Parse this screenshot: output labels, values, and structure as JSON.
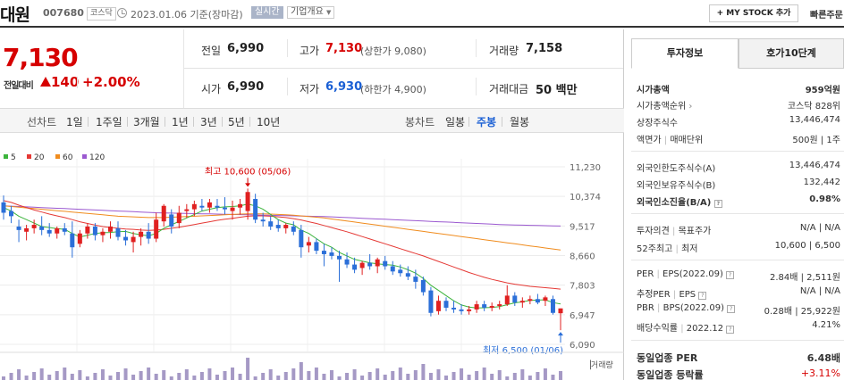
{
  "header": {
    "company": "대원",
    "code": "007680",
    "market": "코스닥",
    "date_text": "2023.01.06  기준(장마감)",
    "realtime_badge": "실시간",
    "overview_dropdown": "기업개요",
    "mystock_label": "MY STOCK 추가",
    "quick_order_label": "빠른주문"
  },
  "price": {
    "current": "7,130",
    "change_label": "전일대비",
    "change_value": "140",
    "change_pct": "+2.00%"
  },
  "summary": {
    "prev_close_label": "전일",
    "prev_close": "6,990",
    "high_label": "고가",
    "high": "7,130",
    "upper_limit": "(상한가 9,080)",
    "volume_label": "거래량",
    "volume": "7,158",
    "open_label": "시가",
    "open": "6,990",
    "low_label": "저가",
    "low": "6,930",
    "lower_limit": "(하한가 4,900)",
    "amount_label": "거래대금",
    "amount": "50 백만"
  },
  "toolbar": {
    "line_chart_label": "선차트",
    "periods": [
      "1일",
      "1주일",
      "3개월",
      "1년",
      "3년",
      "5년",
      "10년"
    ],
    "candle_chart_label": "봉차트",
    "candle_periods": [
      "일봉",
      "주봉",
      "월봉"
    ],
    "candle_active": "주봉"
  },
  "chart_data": {
    "type": "candlestick",
    "ma_legend": [
      {
        "name": "5",
        "color": "#3cb43c"
      },
      {
        "name": "20",
        "color": "#e53935"
      },
      {
        "name": "60",
        "color": "#f08c1e"
      },
      {
        "name": "120",
        "color": "#9b59d0"
      }
    ],
    "y_ticks": [
      "11,230",
      "10,374",
      "9,517",
      "8,660",
      "7,803",
      "6,947",
      "6,090"
    ],
    "ylim": [
      6090,
      11230
    ],
    "high_annotation": "최고 10,600 (05/06)",
    "low_annotation": "최저 6,500 (01/06)",
    "volume_label": "거래량",
    "candles": [
      {
        "o": 10200,
        "h": 10400,
        "l": 9700,
        "c": 9900
      },
      {
        "o": 9950,
        "h": 10100,
        "l": 9600,
        "c": 9800
      },
      {
        "o": 9500,
        "h": 9700,
        "l": 9050,
        "c": 9400
      },
      {
        "o": 9350,
        "h": 9550,
        "l": 9100,
        "c": 9450
      },
      {
        "o": 9450,
        "h": 9700,
        "l": 9300,
        "c": 9550
      },
      {
        "o": 9500,
        "h": 9800,
        "l": 9250,
        "c": 9400
      },
      {
        "o": 9400,
        "h": 9600,
        "l": 9200,
        "c": 9300
      },
      {
        "o": 9300,
        "h": 9500,
        "l": 9150,
        "c": 9450
      },
      {
        "o": 9450,
        "h": 9600,
        "l": 9250,
        "c": 9350
      },
      {
        "o": 9300,
        "h": 9650,
        "l": 8600,
        "c": 8900
      },
      {
        "o": 9000,
        "h": 9400,
        "l": 8900,
        "c": 9300
      },
      {
        "o": 9300,
        "h": 9600,
        "l": 9150,
        "c": 9500
      },
      {
        "o": 9500,
        "h": 9600,
        "l": 9100,
        "c": 9250
      },
      {
        "o": 9250,
        "h": 9450,
        "l": 9050,
        "c": 9350
      },
      {
        "o": 9350,
        "h": 9650,
        "l": 9150,
        "c": 9500
      },
      {
        "o": 9450,
        "h": 9650,
        "l": 9100,
        "c": 9200
      },
      {
        "o": 9200,
        "h": 9400,
        "l": 8950,
        "c": 9100
      },
      {
        "o": 9050,
        "h": 9350,
        "l": 8750,
        "c": 9200
      },
      {
        "o": 9200,
        "h": 9450,
        "l": 8950,
        "c": 9350
      },
      {
        "o": 9350,
        "h": 9600,
        "l": 9000,
        "c": 9150
      },
      {
        "o": 9150,
        "h": 9900,
        "l": 9050,
        "c": 9700
      },
      {
        "o": 9650,
        "h": 10150,
        "l": 9500,
        "c": 10100
      },
      {
        "o": 9850,
        "h": 10000,
        "l": 9300,
        "c": 9500
      },
      {
        "o": 9600,
        "h": 10100,
        "l": 9450,
        "c": 9900
      },
      {
        "o": 9950,
        "h": 10150,
        "l": 9750,
        "c": 10000
      },
      {
        "o": 10000,
        "h": 10250,
        "l": 9800,
        "c": 10150
      },
      {
        "o": 10100,
        "h": 10300,
        "l": 9950,
        "c": 10050
      },
      {
        "o": 10050,
        "h": 10300,
        "l": 9900,
        "c": 10200
      },
      {
        "o": 10100,
        "h": 10300,
        "l": 9950,
        "c": 10050
      },
      {
        "o": 10050,
        "h": 10350,
        "l": 9850,
        "c": 10000
      },
      {
        "o": 9950,
        "h": 10250,
        "l": 9700,
        "c": 10050
      },
      {
        "o": 10050,
        "h": 10300,
        "l": 9850,
        "c": 10150
      },
      {
        "o": 9950,
        "h": 10600,
        "l": 9700,
        "c": 10500
      },
      {
        "o": 10300,
        "h": 10450,
        "l": 9600,
        "c": 9700
      },
      {
        "o": 9700,
        "h": 9900,
        "l": 9500,
        "c": 9650
      },
      {
        "o": 9650,
        "h": 9800,
        "l": 9400,
        "c": 9500
      },
      {
        "o": 9550,
        "h": 9700,
        "l": 9350,
        "c": 9450
      },
      {
        "o": 9450,
        "h": 9600,
        "l": 9300,
        "c": 9550
      },
      {
        "o": 9500,
        "h": 9650,
        "l": 9250,
        "c": 9350
      },
      {
        "o": 9400,
        "h": 9550,
        "l": 8600,
        "c": 8900
      },
      {
        "o": 8950,
        "h": 9200,
        "l": 8750,
        "c": 9050
      },
      {
        "o": 9050,
        "h": 9150,
        "l": 8700,
        "c": 8800
      },
      {
        "o": 8800,
        "h": 9000,
        "l": 8350,
        "c": 8700
      },
      {
        "o": 8750,
        "h": 8900,
        "l": 8550,
        "c": 8650
      },
      {
        "o": 8650,
        "h": 8800,
        "l": 7900,
        "c": 8550
      },
      {
        "o": 8550,
        "h": 8750,
        "l": 8300,
        "c": 8400
      },
      {
        "o": 8400,
        "h": 8600,
        "l": 8150,
        "c": 8250
      },
      {
        "o": 8300,
        "h": 8500,
        "l": 8100,
        "c": 8450
      },
      {
        "o": 8450,
        "h": 8700,
        "l": 8250,
        "c": 8350
      },
      {
        "o": 8350,
        "h": 8600,
        "l": 8150,
        "c": 8550
      },
      {
        "o": 8500,
        "h": 8650,
        "l": 8250,
        "c": 8350
      },
      {
        "o": 8350,
        "h": 8500,
        "l": 8100,
        "c": 8200
      },
      {
        "o": 8250,
        "h": 8400,
        "l": 8050,
        "c": 8150
      },
      {
        "o": 8150,
        "h": 8350,
        "l": 7950,
        "c": 8050
      },
      {
        "o": 8050,
        "h": 8250,
        "l": 7700,
        "c": 7900
      },
      {
        "o": 7950,
        "h": 8050,
        "l": 7500,
        "c": 7600
      },
      {
        "o": 7650,
        "h": 7750,
        "l": 6900,
        "c": 7000
      },
      {
        "o": 7050,
        "h": 7500,
        "l": 6950,
        "c": 7350
      },
      {
        "o": 7350,
        "h": 7450,
        "l": 7050,
        "c": 7150
      },
      {
        "o": 7150,
        "h": 7350,
        "l": 7000,
        "c": 7100
      },
      {
        "o": 7100,
        "h": 7250,
        "l": 6950,
        "c": 7050
      },
      {
        "o": 7050,
        "h": 7200,
        "l": 6950,
        "c": 7100
      },
      {
        "o": 7100,
        "h": 7350,
        "l": 7000,
        "c": 7250
      },
      {
        "o": 7250,
        "h": 7350,
        "l": 7050,
        "c": 7150
      },
      {
        "o": 7150,
        "h": 7300,
        "l": 7050,
        "c": 7200
      },
      {
        "o": 7200,
        "h": 7350,
        "l": 7100,
        "c": 7250
      },
      {
        "o": 7250,
        "h": 7800,
        "l": 7200,
        "c": 7500
      },
      {
        "o": 7500,
        "h": 7600,
        "l": 7200,
        "c": 7300
      },
      {
        "o": 7300,
        "h": 7450,
        "l": 7150,
        "c": 7350
      },
      {
        "o": 7350,
        "h": 7500,
        "l": 7250,
        "c": 7400
      },
      {
        "o": 7400,
        "h": 7550,
        "l": 7250,
        "c": 7300
      },
      {
        "o": 7350,
        "h": 7500,
        "l": 7200,
        "c": 7450
      },
      {
        "o": 7400,
        "h": 7500,
        "l": 6950,
        "c": 7000
      },
      {
        "o": 6990,
        "h": 7130,
        "l": 6500,
        "c": 7130
      }
    ],
    "ma5": [
      10050,
      9950,
      9800,
      9700,
      9600,
      9500,
      9470,
      9440,
      9420,
      9300,
      9200,
      9250,
      9300,
      9320,
      9330,
      9350,
      9360,
      9300,
      9260,
      9230,
      9300,
      9450,
      9550,
      9650,
      9750,
      9850,
      9950,
      10000,
      10050,
      10070,
      10080,
      10100,
      10150,
      10100,
      10000,
      9850,
      9700,
      9600,
      9550,
      9400,
      9300,
      9150,
      9000,
      8900,
      8750,
      8650,
      8550,
      8500,
      8450,
      8420,
      8400,
      8380,
      8330,
      8250,
      8150,
      8000,
      7800,
      7650,
      7500,
      7350,
      7230,
      7170,
      7140,
      7150,
      7160,
      7180,
      7240,
      7290,
      7320,
      7360,
      7370,
      7380,
      7300,
      7260
    ],
    "ma20": [
      10250,
      10200,
      10120,
      10050,
      9980,
      9920,
      9860,
      9810,
      9760,
      9700,
      9640,
      9590,
      9540,
      9500,
      9470,
      9450,
      9430,
      9420,
      9400,
      9390,
      9400,
      9420,
      9450,
      9480,
      9520,
      9560,
      9600,
      9640,
      9680,
      9710,
      9740,
      9770,
      9800,
      9810,
      9810,
      9800,
      9780,
      9760,
      9730,
      9690,
      9640,
      9590,
      9530,
      9470,
      9410,
      9350,
      9280,
      9210,
      9140,
      9070,
      9000,
      8930,
      8860,
      8790,
      8720,
      8650,
      8570,
      8490,
      8410,
      8330,
      8250,
      8170,
      8100,
      8030,
      7970,
      7920,
      7870,
      7830,
      7800,
      7770,
      7750,
      7730,
      7710,
      7690
    ],
    "ma60": [
      10100,
      10080,
      10060,
      10040,
      10020,
      10000,
      9980,
      9960,
      9940,
      9920,
      9900,
      9880,
      9860,
      9840,
      9820,
      9800,
      9790,
      9780,
      9770,
      9760,
      9760,
      9760,
      9770,
      9780,
      9790,
      9800,
      9810,
      9820,
      9830,
      9840,
      9850,
      9860,
      9870,
      9870,
      9870,
      9860,
      9850,
      9840,
      9830,
      9810,
      9790,
      9770,
      9750,
      9720,
      9690,
      9660,
      9630,
      9600,
      9570,
      9540,
      9510,
      9480,
      9450,
      9420,
      9390,
      9360,
      9330,
      9300,
      9270,
      9240,
      9210,
      9180,
      9150,
      9120,
      9090,
      9060,
      9030,
      9000,
      8970,
      8940,
      8910,
      8880,
      8850,
      8820
    ],
    "ma120": [
      10100,
      10090,
      10080,
      10070,
      10060,
      10050,
      10040,
      10030,
      10020,
      10010,
      10000,
      9990,
      9980,
      9970,
      9960,
      9950,
      9940,
      9930,
      9920,
      9910,
      9900,
      9895,
      9890,
      9885,
      9880,
      9875,
      9870,
      9865,
      9860,
      9855,
      9850,
      9845,
      9840,
      9835,
      9830,
      9825,
      9820,
      9815,
      9810,
      9805,
      9800,
      9795,
      9790,
      9780,
      9770,
      9760,
      9750,
      9740,
      9730,
      9720,
      9710,
      9700,
      9690,
      9680,
      9670,
      9660,
      9650,
      9640,
      9630,
      9620,
      9610,
      9600,
      9590,
      9580,
      9570,
      9560,
      9550,
      9545,
      9540,
      9535,
      9530,
      9525,
      9520,
      9515
    ]
  },
  "panel": {
    "tab_active": "투자정보",
    "tab_inactive": "호가10단계",
    "market_cap_label": "시가총액",
    "market_cap_value": "959억원",
    "market_cap_rank_label": "시가총액순위",
    "market_cap_rank_value": "코스닥 828위",
    "shares_label": "상장주식수",
    "shares_value": "13,446,474",
    "par_label": "액면가",
    "unit_label": "매매단위",
    "par_unit_value": "500원 | 1주",
    "foreign_limit_label": "외국인한도주식수(A)",
    "foreign_limit_value": "13,446,474",
    "foreign_hold_label": "외국인보유주식수(B)",
    "foreign_hold_value": "132,442",
    "foreign_ratio_label": "외국인소진율(B/A)",
    "foreign_ratio_value": "0.98%",
    "opinion_label": "투자의견",
    "target_label": "목표주가",
    "opinion_value": "N/A | N/A",
    "w52_label": "52주최고",
    "w52_low_label": "최저",
    "w52_value": "10,600 | 6,500",
    "per_label": "PER",
    "eps_label": "EPS(2022.09)",
    "per_eps_value": "2.84배 | 2,511원",
    "est_per_label": "추정PER",
    "est_eps_label": "EPS",
    "est_value": "N/A | N/A",
    "pbr_label": "PBR",
    "bps_label": "BPS(2022.09)",
    "pbr_bps_value": "0.28배 | 25,922원",
    "div_label": "배당수익률",
    "div_date": "2022.12",
    "div_value": "4.21%",
    "sector_per_label": "동일업종 PER",
    "sector_per_value": "6.48배",
    "sector_chg_label": "동일업종 등락률",
    "sector_chg_value": "+3.11%"
  }
}
